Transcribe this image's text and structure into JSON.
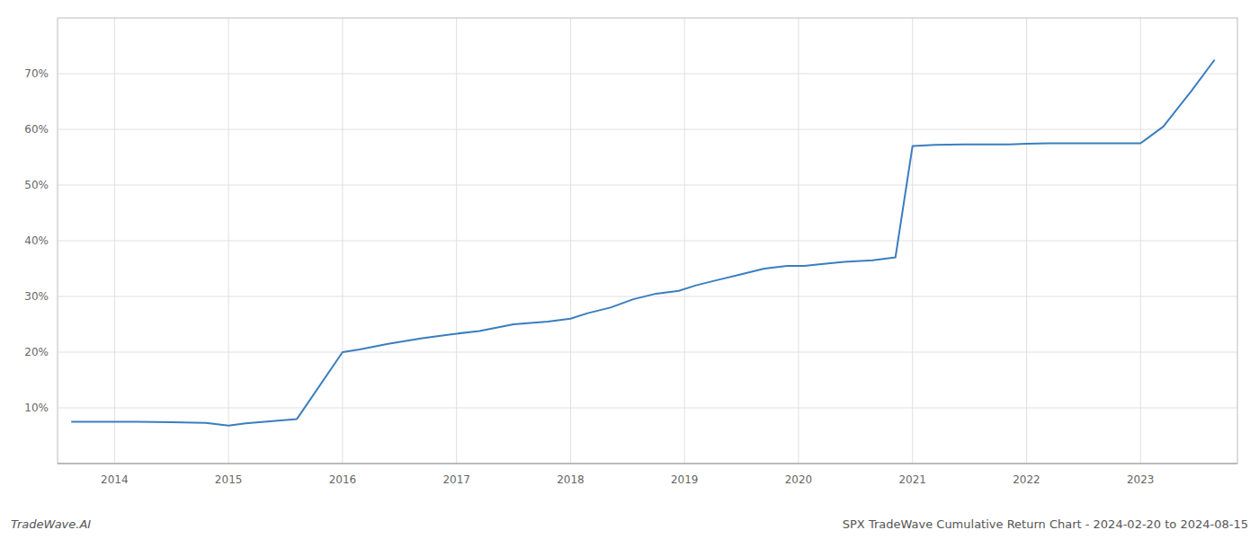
{
  "chart_data": {
    "type": "line",
    "title": "SPX TradeWave Cumulative Return Chart - 2024-02-20 to 2024-08-15",
    "watermark": "TradeWave.AI",
    "color": "#3a7ebf",
    "x": [
      2013.62,
      2014.0,
      2014.2,
      2014.5,
      2014.8,
      2015.0,
      2015.15,
      2015.6,
      2016.0,
      2016.15,
      2016.4,
      2016.7,
      2016.95,
      2017.2,
      2017.5,
      2017.8,
      2018.0,
      2018.15,
      2018.35,
      2018.55,
      2018.75,
      2018.95,
      2019.1,
      2019.3,
      2019.5,
      2019.7,
      2019.9,
      2020.05,
      2020.2,
      2020.4,
      2020.65,
      2020.85,
      2021.0,
      2021.2,
      2021.45,
      2021.65,
      2021.85,
      2022.0,
      2022.2,
      2022.45,
      2022.65,
      2022.85,
      2023.0,
      2023.2,
      2023.45,
      2023.65
    ],
    "values": [
      7.5,
      7.5,
      7.5,
      7.4,
      7.3,
      6.8,
      7.2,
      8.0,
      20.0,
      20.5,
      21.5,
      22.5,
      23.2,
      23.8,
      25.0,
      25.5,
      26.0,
      27.0,
      28.0,
      29.5,
      30.5,
      31.0,
      32.0,
      33.0,
      34.0,
      35.0,
      35.5,
      35.5,
      35.8,
      36.2,
      36.5,
      37.0,
      57.0,
      57.2,
      57.3,
      57.3,
      57.3,
      57.4,
      57.5,
      57.5,
      57.5,
      57.5,
      57.5,
      60.5,
      67.0,
      72.5
    ],
    "xlim": [
      2013.5,
      2023.85
    ],
    "ylim": [
      0,
      80
    ],
    "xticks": [
      2014,
      2015,
      2016,
      2017,
      2018,
      2019,
      2020,
      2021,
      2022,
      2023
    ],
    "yticks": [
      {
        "value": 10,
        "label": "10%"
      },
      {
        "value": 20,
        "label": "20%"
      },
      {
        "value": 30,
        "label": "30%"
      },
      {
        "value": 40,
        "label": "40%"
      },
      {
        "value": 50,
        "label": "50%"
      },
      {
        "value": 60,
        "label": "60%"
      },
      {
        "value": 70,
        "label": "70%"
      }
    ],
    "grid": true
  }
}
